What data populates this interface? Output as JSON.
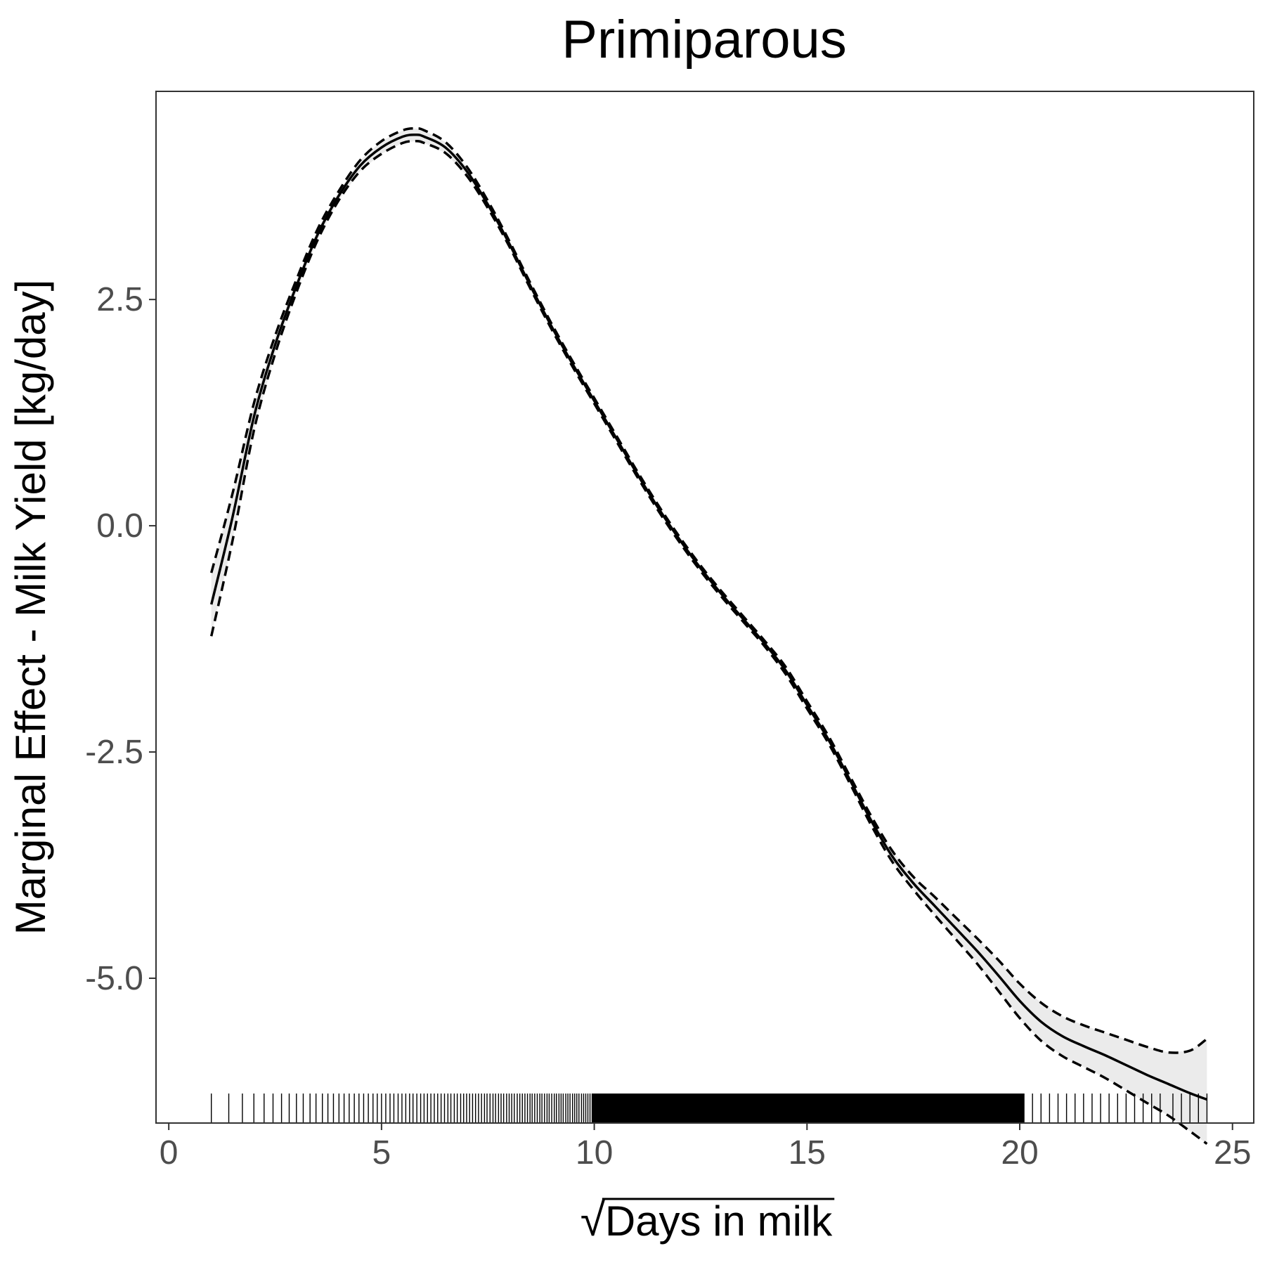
{
  "chart_data": {
    "type": "line",
    "title": "Primiparous",
    "xlabel": "Days in milk",
    "xlabel_prefix": "√",
    "ylabel": "Marginal Effect - Milk Yield [kg/day]",
    "xlim": [
      -0.3,
      25.5
    ],
    "ylim": [
      -6.6,
      4.8
    ],
    "x_ticks": [
      0,
      5,
      10,
      15,
      20,
      25
    ],
    "x_tick_labels": [
      "0",
      "5",
      "10",
      "15",
      "20",
      "25"
    ],
    "y_ticks": [
      2.5,
      0.0,
      -2.5,
      -5.0
    ],
    "y_tick_labels": [
      "2.5",
      "0.0",
      "-2.5",
      "-5.0"
    ],
    "grid": false,
    "legend": "none",
    "colors": {
      "line": "#000000",
      "band": "#ebebeb",
      "tick_text": "#4d4d4d",
      "panel_border": "#333333"
    },
    "series": [
      {
        "role": "estimate",
        "style": "solid",
        "x": [
          1,
          1.5,
          2,
          2.5,
          3,
          3.5,
          4,
          4.5,
          5,
          5.5,
          5.8,
          6,
          6.5,
          7,
          7.5,
          8,
          8.5,
          9,
          9.5,
          10,
          10.5,
          11,
          11.5,
          12,
          12.5,
          13,
          13.5,
          14,
          14.5,
          15,
          15.5,
          16,
          16.5,
          17,
          17.5,
          18,
          18.5,
          19,
          19.5,
          20,
          20.5,
          21,
          21.5,
          22,
          22.5,
          23,
          23.5,
          24,
          24.4
        ],
        "y": [
          -0.87,
          0.1,
          1.2,
          2.0,
          2.65,
          3.22,
          3.65,
          3.98,
          4.18,
          4.3,
          4.32,
          4.3,
          4.18,
          3.92,
          3.55,
          3.12,
          2.65,
          2.2,
          1.78,
          1.38,
          0.98,
          0.58,
          0.2,
          -0.15,
          -0.47,
          -0.76,
          -1.03,
          -1.3,
          -1.6,
          -1.98,
          -2.36,
          -2.8,
          -3.25,
          -3.65,
          -3.95,
          -4.2,
          -4.45,
          -4.7,
          -4.97,
          -5.25,
          -5.48,
          -5.64,
          -5.75,
          -5.85,
          -5.96,
          -6.07,
          -6.17,
          -6.27,
          -6.34
        ]
      },
      {
        "role": "upper bound",
        "style": "dashed",
        "x": [
          1,
          1.5,
          2,
          2.5,
          3,
          3.5,
          4,
          4.5,
          5,
          5.5,
          5.8,
          6,
          6.5,
          7,
          7.5,
          8,
          8.5,
          9,
          9.5,
          10,
          10.5,
          11,
          11.5,
          12,
          12.5,
          13,
          13.5,
          14,
          14.5,
          15,
          15.5,
          16,
          16.5,
          17,
          17.5,
          18,
          18.5,
          19,
          19.5,
          20,
          20.5,
          21,
          21.5,
          22,
          22.5,
          23,
          23.5,
          24,
          24.4
        ],
        "y": [
          -0.52,
          0.36,
          1.35,
          2.1,
          2.72,
          3.28,
          3.7,
          4.04,
          4.25,
          4.37,
          4.39,
          4.37,
          4.24,
          3.97,
          3.59,
          3.15,
          2.68,
          2.23,
          1.81,
          1.41,
          1.01,
          0.61,
          0.23,
          -0.12,
          -0.44,
          -0.73,
          -1.0,
          -1.27,
          -1.56,
          -1.94,
          -2.32,
          -2.76,
          -3.2,
          -3.59,
          -3.88,
          -4.1,
          -4.33,
          -4.56,
          -4.8,
          -5.06,
          -5.27,
          -5.42,
          -5.52,
          -5.6,
          -5.68,
          -5.76,
          -5.82,
          -5.8,
          -5.67
        ]
      },
      {
        "role": "lower bound",
        "style": "dashed",
        "x": [
          1,
          1.5,
          2,
          2.5,
          3,
          3.5,
          4,
          4.5,
          5,
          5.5,
          5.8,
          6,
          6.5,
          7,
          7.5,
          8,
          8.5,
          9,
          9.5,
          10,
          10.5,
          11,
          11.5,
          12,
          12.5,
          13,
          13.5,
          14,
          14.5,
          15,
          15.5,
          16,
          16.5,
          17,
          17.5,
          18,
          18.5,
          19,
          19.5,
          20,
          20.5,
          21,
          21.5,
          22,
          22.5,
          23,
          23.5,
          24,
          24.4
        ],
        "y": [
          -1.22,
          -0.16,
          1.05,
          1.9,
          2.58,
          3.16,
          3.6,
          3.92,
          4.11,
          4.23,
          4.25,
          4.23,
          4.12,
          3.87,
          3.51,
          3.09,
          2.62,
          2.17,
          1.75,
          1.35,
          0.95,
          0.55,
          0.17,
          -0.18,
          -0.5,
          -0.79,
          -1.06,
          -1.33,
          -1.64,
          -2.02,
          -2.4,
          -2.84,
          -3.3,
          -3.71,
          -4.02,
          -4.3,
          -4.57,
          -4.84,
          -5.14,
          -5.44,
          -5.69,
          -5.86,
          -5.98,
          -6.1,
          -6.24,
          -6.38,
          -6.52,
          -6.69,
          -6.83
        ]
      }
    ],
    "rug_x": [
      1.0,
      1.41,
      1.73,
      2.0,
      2.24,
      2.45,
      2.65,
      2.83,
      3.0,
      3.16,
      3.32,
      3.46,
      3.61,
      3.74,
      3.87,
      4.0,
      4.12,
      4.24,
      4.36,
      4.47,
      4.58,
      4.69,
      4.8,
      4.9,
      5.0,
      5.1,
      5.2,
      5.29,
      5.39,
      5.48,
      5.57,
      5.66,
      5.74,
      5.83,
      5.92,
      6.0,
      6.08,
      6.16,
      6.24,
      6.32,
      6.4,
      6.48,
      6.56,
      6.63,
      6.71,
      6.78,
      6.86,
      6.93,
      7.0,
      7.07,
      7.14,
      7.21,
      7.28,
      7.35,
      7.42,
      7.48,
      7.55,
      7.62,
      7.68,
      7.75,
      7.81,
      7.87,
      7.94,
      8.0,
      8.06,
      8.12,
      8.19,
      8.25,
      8.31,
      8.37,
      8.43,
      8.49,
      8.54,
      8.6,
      8.66,
      8.72,
      8.77,
      8.83,
      8.89,
      8.94,
      9.0,
      9.06,
      9.11,
      9.17,
      9.22,
      9.27,
      9.33,
      9.38,
      9.43,
      9.49,
      9.54,
      9.59,
      9.64,
      9.7,
      9.75,
      9.8,
      9.85,
      9.9,
      9.95,
      20.1,
      20.3,
      20.5,
      20.7,
      20.9,
      21.1,
      21.3,
      21.5,
      21.7,
      21.9,
      22.1,
      22.3,
      22.5,
      22.7,
      22.9,
      23.1,
      23.3,
      23.6,
      23.8,
      24.0,
      24.2,
      24.4
    ],
    "rug_dense_range": [
      9.95,
      20.1
    ]
  }
}
